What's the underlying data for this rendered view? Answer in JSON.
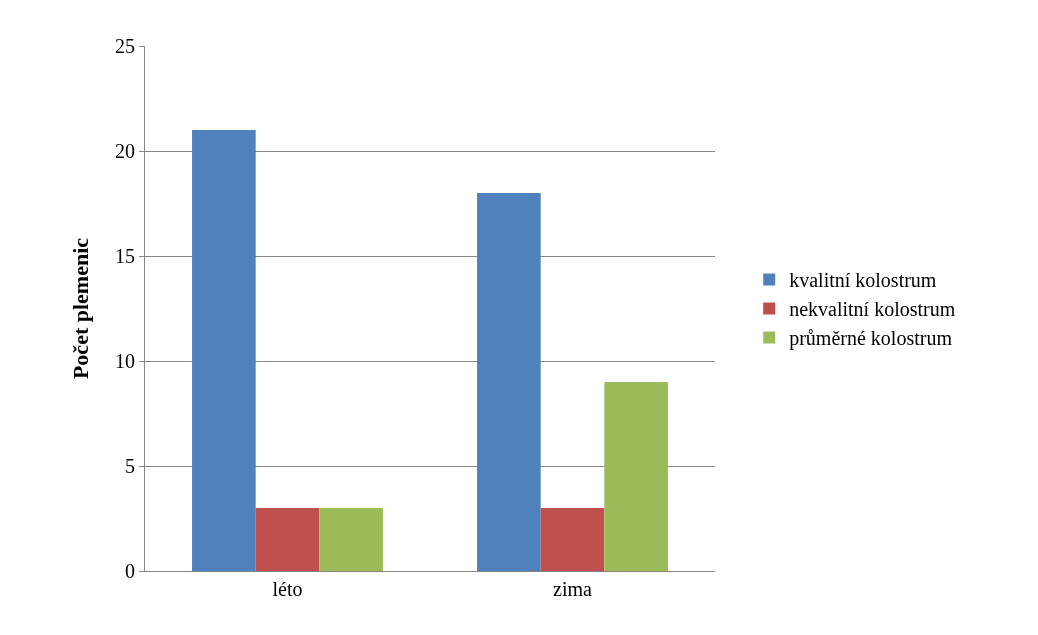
{
  "chart_data": {
    "type": "bar",
    "ylabel": "Počet plemenic",
    "categories": [
      "léto",
      "zima"
    ],
    "series": [
      {
        "name": "kvalitní kolostrum",
        "color": "#4f81bd",
        "values": [
          21,
          18
        ]
      },
      {
        "name": "nekvalitní kolostrum",
        "color": "#c0504d",
        "values": [
          3,
          3
        ]
      },
      {
        "name": "průměrné kolostrum",
        "color": "#9bbb59",
        "values": [
          3,
          9
        ]
      }
    ],
    "ylim": [
      0,
      25
    ],
    "yticks": [
      0,
      5,
      10,
      15,
      20,
      25
    ],
    "grid": "y",
    "legend": "right"
  }
}
